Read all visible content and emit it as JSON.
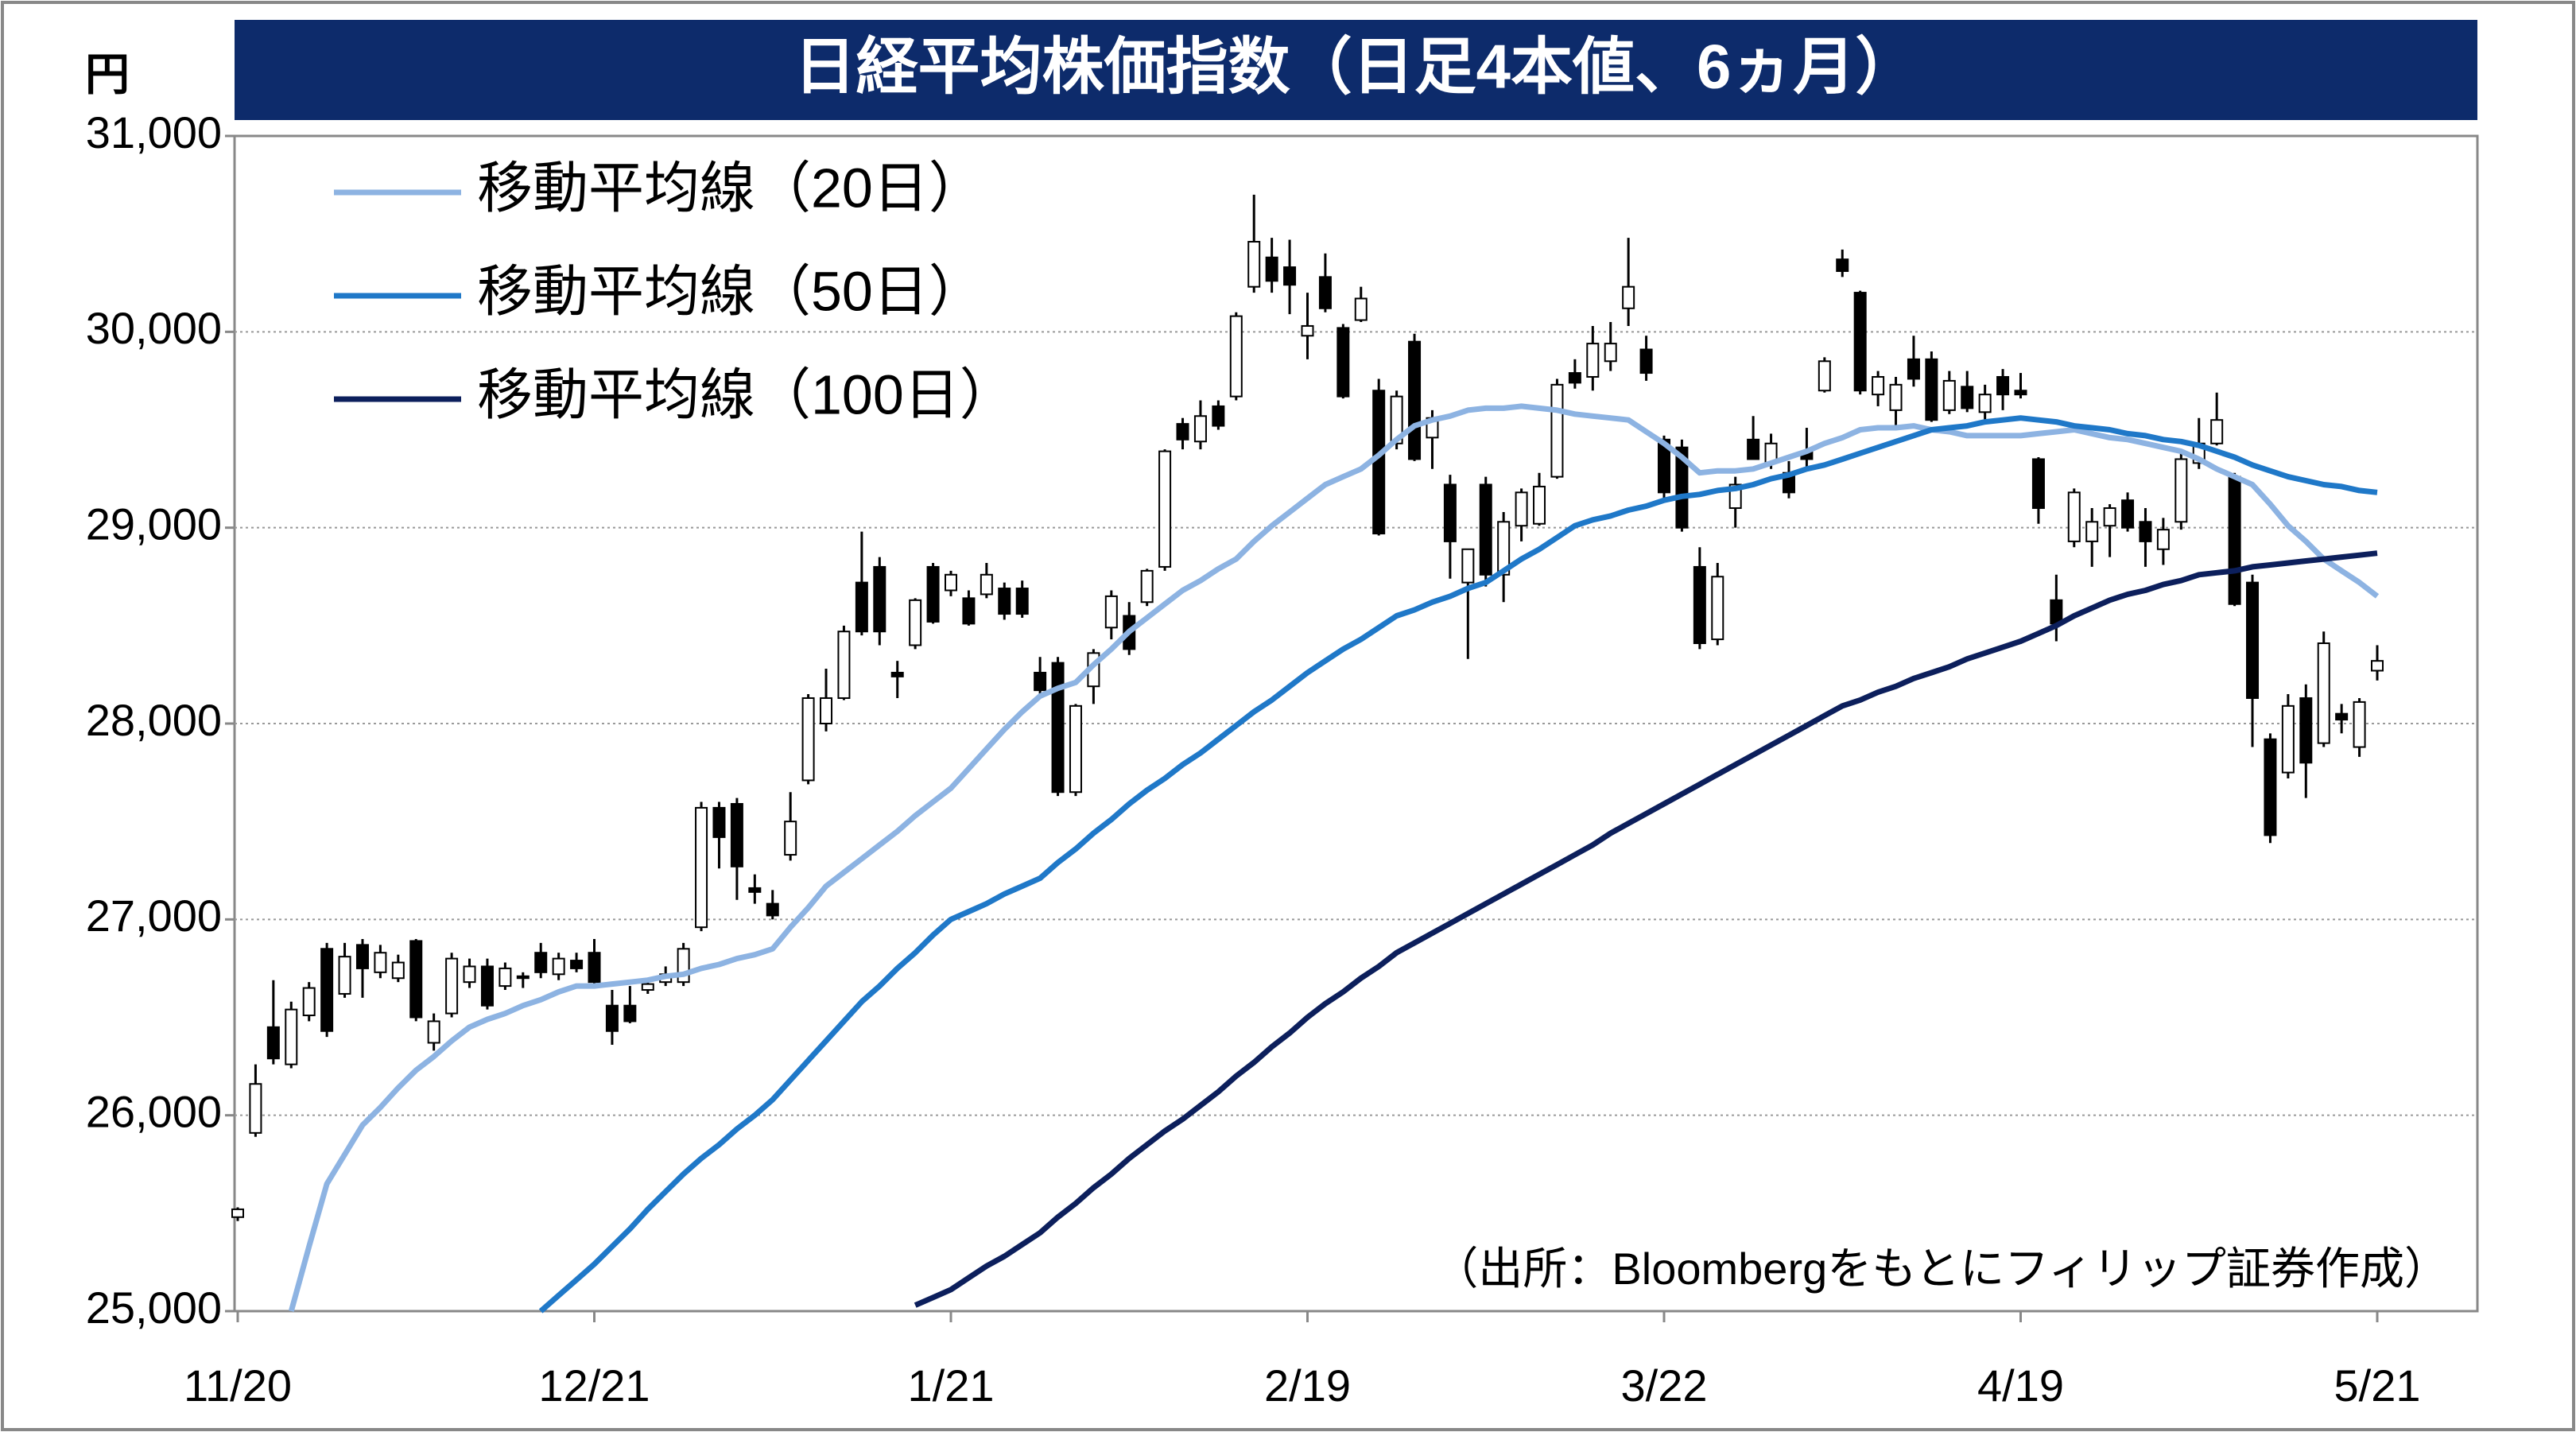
{
  "chart_data": {
    "type": "candlestick",
    "title": "日経平均株価指数（日足4本値、6ヵ月）",
    "y_unit": "円",
    "source": "（出所：Bloombergをもとにフィリップ証券作成）",
    "ylim": [
      25000,
      31000
    ],
    "yticks": [
      {
        "value": 25000,
        "label": "25,000"
      },
      {
        "value": 26000,
        "label": "26,000"
      },
      {
        "value": 27000,
        "label": "27,000"
      },
      {
        "value": 28000,
        "label": "28,000"
      },
      {
        "value": 29000,
        "label": "29,000"
      },
      {
        "value": 30000,
        "label": "30,000"
      },
      {
        "value": 31000,
        "label": "31,000"
      }
    ],
    "grid": true,
    "legend": "upper left",
    "up_color": "#ffffff",
    "down_color": "#000000",
    "categories": [
      "11/20",
      null,
      null,
      null,
      null,
      null,
      null,
      null,
      null,
      null,
      null,
      null,
      null,
      null,
      null,
      null,
      null,
      null,
      null,
      null,
      "12/21",
      null,
      null,
      null,
      null,
      null,
      null,
      null,
      null,
      null,
      null,
      null,
      null,
      null,
      null,
      null,
      null,
      null,
      null,
      null,
      "1/21",
      null,
      null,
      null,
      null,
      null,
      null,
      null,
      null,
      null,
      null,
      null,
      null,
      null,
      null,
      null,
      null,
      null,
      null,
      null,
      "2/19",
      null,
      null,
      null,
      null,
      null,
      null,
      null,
      null,
      null,
      null,
      null,
      null,
      null,
      null,
      null,
      null,
      null,
      null,
      null,
      "3/22",
      null,
      null,
      null,
      null,
      null,
      null,
      null,
      null,
      null,
      null,
      null,
      null,
      null,
      null,
      null,
      null,
      null,
      null,
      null,
      "4/19",
      null,
      null,
      null,
      null,
      null,
      null,
      null,
      null,
      null,
      null,
      null,
      null,
      null,
      null,
      null,
      null,
      null,
      null,
      null,
      "5/21"
    ],
    "candles": [
      [
        25480,
        25530,
        25460,
        25520
      ],
      [
        25910,
        26260,
        25890,
        26160
      ],
      [
        26450,
        26690,
        26260,
        26290
      ],
      [
        26260,
        26580,
        26240,
        26540
      ],
      [
        26510,
        26680,
        26480,
        26650
      ],
      [
        26850,
        26880,
        26400,
        26430
      ],
      [
        26620,
        26880,
        26600,
        26810
      ],
      [
        26870,
        26900,
        26600,
        26750
      ],
      [
        26730,
        26870,
        26700,
        26830
      ],
      [
        26700,
        26820,
        26680,
        26780
      ],
      [
        26890,
        26900,
        26480,
        26500
      ],
      [
        26370,
        26520,
        26330,
        26480
      ],
      [
        26520,
        26830,
        26500,
        26800
      ],
      [
        26680,
        26800,
        26650,
        26760
      ],
      [
        26760,
        26800,
        26540,
        26560
      ],
      [
        26660,
        26780,
        26640,
        26750
      ],
      [
        26710,
        26730,
        26650,
        26700
      ],
      [
        26830,
        26880,
        26700,
        26730
      ],
      [
        26720,
        26830,
        26690,
        26800
      ],
      [
        26790,
        26830,
        26730,
        26750
      ],
      [
        26830,
        26900,
        26650,
        26680
      ],
      [
        26560,
        26640,
        26360,
        26430
      ],
      [
        26560,
        26660,
        26470,
        26480
      ],
      [
        26640,
        26690,
        26620,
        26670
      ],
      [
        26680,
        26760,
        26660,
        26720
      ],
      [
        26680,
        26880,
        26660,
        26850
      ],
      [
        26960,
        27600,
        26940,
        27570
      ],
      [
        27570,
        27600,
        27260,
        27420
      ],
      [
        27590,
        27620,
        27100,
        27270
      ],
      [
        27160,
        27230,
        27080,
        27140
      ],
      [
        27080,
        27150,
        27000,
        27020
      ],
      [
        27330,
        27650,
        27300,
        27500
      ],
      [
        27710,
        28150,
        27690,
        28130
      ],
      [
        28000,
        28280,
        27960,
        28130
      ],
      [
        28130,
        28500,
        28120,
        28470
      ],
      [
        28720,
        28980,
        28450,
        28470
      ],
      [
        28800,
        28850,
        28400,
        28470
      ],
      [
        28260,
        28320,
        28130,
        28240
      ],
      [
        28400,
        28640,
        28380,
        28630
      ],
      [
        28800,
        28820,
        28510,
        28520
      ],
      [
        28680,
        28780,
        28650,
        28760
      ],
      [
        28640,
        28680,
        28500,
        28510
      ],
      [
        28660,
        28820,
        28640,
        28760
      ],
      [
        28690,
        28720,
        28530,
        28560
      ],
      [
        28690,
        28730,
        28540,
        28560
      ],
      [
        28260,
        28340,
        28150,
        28170
      ],
      [
        28310,
        28340,
        27630,
        27650
      ],
      [
        27650,
        28100,
        27630,
        28090
      ],
      [
        28190,
        28380,
        28100,
        28360
      ],
      [
        28490,
        28680,
        28430,
        28650
      ],
      [
        28550,
        28620,
        28350,
        28380
      ],
      [
        28620,
        28790,
        28600,
        28780
      ],
      [
        28800,
        29400,
        28780,
        29390
      ],
      [
        29530,
        29560,
        29400,
        29450
      ],
      [
        29440,
        29650,
        29400,
        29570
      ],
      [
        29620,
        29650,
        29500,
        29520
      ],
      [
        29670,
        30100,
        29650,
        30080
      ],
      [
        30230,
        30700,
        30200,
        30460
      ],
      [
        30380,
        30480,
        30200,
        30260
      ],
      [
        30330,
        30470,
        30090,
        30240
      ],
      [
        29980,
        30200,
        29860,
        30030
      ],
      [
        30280,
        30400,
        30100,
        30120
      ],
      [
        30020,
        30040,
        29660,
        29670
      ],
      [
        30060,
        30230,
        30050,
        30170
      ],
      [
        29700,
        29760,
        28960,
        28970
      ],
      [
        29430,
        29700,
        29400,
        29670
      ],
      [
        29950,
        29990,
        29340,
        29350
      ],
      [
        29460,
        29600,
        29300,
        29560
      ],
      [
        29220,
        29270,
        28740,
        28930
      ],
      [
        28720,
        28890,
        28330,
        28890
      ],
      [
        29220,
        29260,
        28700,
        28760
      ],
      [
        28760,
        29080,
        28620,
        29030
      ],
      [
        29010,
        29200,
        28930,
        29180
      ],
      [
        29020,
        29280,
        29010,
        29210
      ],
      [
        29260,
        29760,
        29250,
        29730
      ],
      [
        29790,
        29860,
        29710,
        29740
      ],
      [
        29770,
        30030,
        29700,
        29940
      ],
      [
        29850,
        30050,
        29800,
        29940
      ],
      [
        30120,
        30480,
        30030,
        30230
      ],
      [
        29910,
        29980,
        29750,
        29790
      ],
      [
        29450,
        29470,
        29150,
        29180
      ],
      [
        29410,
        29450,
        28980,
        29000
      ],
      [
        28800,
        28900,
        28380,
        28410
      ],
      [
        28430,
        28820,
        28400,
        28750
      ],
      [
        29100,
        29260,
        29000,
        29220
      ],
      [
        29450,
        29570,
        29350,
        29350
      ],
      [
        29330,
        29480,
        29300,
        29430
      ],
      [
        29280,
        29340,
        29150,
        29180
      ],
      [
        29390,
        29510,
        29300,
        29350
      ],
      [
        29700,
        29870,
        29690,
        29850
      ],
      [
        30370,
        30420,
        30280,
        30310
      ],
      [
        30200,
        30210,
        29680,
        29700
      ],
      [
        29680,
        29800,
        29620,
        29770
      ],
      [
        29600,
        29770,
        29500,
        29730
      ],
      [
        29860,
        29980,
        29720,
        29760
      ],
      [
        29860,
        29900,
        29540,
        29550
      ],
      [
        29600,
        29800,
        29580,
        29750
      ],
      [
        29720,
        29800,
        29590,
        29610
      ],
      [
        29590,
        29730,
        29550,
        29680
      ],
      [
        29770,
        29810,
        29600,
        29680
      ],
      [
        29700,
        29790,
        29660,
        29680
      ],
      [
        29350,
        29360,
        29020,
        29100
      ],
      [
        28630,
        28760,
        28420,
        28510
      ],
      [
        28930,
        29200,
        28900,
        29180
      ],
      [
        28930,
        29100,
        28800,
        29030
      ],
      [
        29010,
        29120,
        28850,
        29100
      ],
      [
        29140,
        29180,
        28980,
        29000
      ],
      [
        29030,
        29100,
        28800,
        28930
      ],
      [
        28890,
        29050,
        28810,
        28990
      ],
      [
        29030,
        29390,
        28990,
        29350
      ],
      [
        29330,
        29560,
        29300,
        29430
      ],
      [
        29430,
        29690,
        29420,
        29550
      ],
      [
        29260,
        29280,
        28600,
        28610
      ],
      [
        28720,
        28760,
        27880,
        28130
      ],
      [
        27920,
        27950,
        27390,
        27430
      ],
      [
        27750,
        28150,
        27720,
        28090
      ],
      [
        28130,
        28200,
        27620,
        27800
      ],
      [
        27900,
        28470,
        27880,
        28410
      ],
      [
        28050,
        28100,
        27950,
        28020
      ],
      [
        27880,
        28130,
        27830,
        28110
      ],
      [
        28270,
        28400,
        28220,
        28320
      ]
    ],
    "series": [
      {
        "name": "移動平均線（20日）",
        "color": "#8db3e2",
        "values": [
          null,
          null,
          null,
          25000,
          25330,
          25650,
          25800,
          25950,
          26040,
          26140,
          26230,
          26300,
          26380,
          26450,
          26490,
          26520,
          26560,
          26590,
          26630,
          26660,
          26660,
          26670,
          26680,
          26690,
          26710,
          26720,
          26750,
          26770,
          26800,
          26820,
          26850,
          26960,
          27060,
          27170,
          27240,
          27310,
          27380,
          27450,
          27530,
          27600,
          27670,
          27770,
          27870,
          27970,
          28060,
          28140,
          28180,
          28210,
          28300,
          28380,
          28470,
          28540,
          28610,
          28680,
          28730,
          28790,
          28840,
          28930,
          29010,
          29080,
          29150,
          29220,
          29260,
          29300,
          29370,
          29450,
          29520,
          29550,
          29570,
          29600,
          29610,
          29610,
          29620,
          29610,
          29600,
          29580,
          29570,
          29560,
          29550,
          29490,
          29430,
          29360,
          29280,
          29290,
          29290,
          29300,
          29330,
          29360,
          29390,
          29430,
          29460,
          29500,
          29510,
          29510,
          29520,
          29500,
          29490,
          29470,
          29470,
          29470,
          29470,
          29480,
          29490,
          29500,
          29480,
          29460,
          29450,
          29430,
          29410,
          29390,
          29350,
          29300,
          29260,
          29220,
          29120,
          29010,
          28930,
          28840,
          28780,
          28720,
          28650
        ]
      },
      {
        "name": "移動平均線（50日）",
        "color": "#1f78c8",
        "values": [
          null,
          null,
          null,
          null,
          null,
          null,
          null,
          null,
          null,
          null,
          null,
          null,
          null,
          null,
          null,
          null,
          null,
          25000,
          25080,
          25160,
          25240,
          25330,
          25420,
          25520,
          25610,
          25700,
          25780,
          25850,
          25930,
          26000,
          26080,
          26180,
          26280,
          26380,
          26480,
          26580,
          26660,
          26750,
          26830,
          26920,
          27000,
          27040,
          27080,
          27130,
          27170,
          27210,
          27290,
          27360,
          27440,
          27510,
          27590,
          27660,
          27720,
          27790,
          27850,
          27920,
          27990,
          28060,
          28120,
          28190,
          28260,
          28320,
          28380,
          28430,
          28490,
          28550,
          28580,
          28620,
          28650,
          28690,
          28720,
          28780,
          28840,
          28890,
          28950,
          29010,
          29040,
          29060,
          29090,
          29110,
          29140,
          29160,
          29170,
          29190,
          29200,
          29220,
          29250,
          29270,
          29300,
          29320,
          29350,
          29380,
          29410,
          29440,
          29470,
          29500,
          29510,
          29520,
          29540,
          29550,
          29560,
          29550,
          29540,
          29520,
          29510,
          29500,
          29480,
          29470,
          29450,
          29440,
          29420,
          29390,
          29360,
          29320,
          29290,
          29260,
          29240,
          29220,
          29210,
          29190,
          29180
        ]
      },
      {
        "name": "移動平均線（100日）",
        "color": "#0c1f5c",
        "values": [
          null,
          null,
          null,
          null,
          null,
          null,
          null,
          null,
          null,
          null,
          null,
          null,
          null,
          null,
          null,
          null,
          null,
          null,
          null,
          null,
          null,
          null,
          null,
          null,
          null,
          null,
          null,
          null,
          null,
          null,
          null,
          null,
          null,
          null,
          null,
          null,
          null,
          null,
          25030,
          25070,
          25110,
          25170,
          25230,
          25280,
          25340,
          25400,
          25480,
          25550,
          25630,
          25700,
          25780,
          25850,
          25920,
          25980,
          26050,
          26120,
          26200,
          26270,
          26350,
          26420,
          26500,
          26570,
          26630,
          26700,
          26760,
          26830,
          26880,
          26930,
          26980,
          27030,
          27080,
          27130,
          27180,
          27230,
          27280,
          27330,
          27380,
          27440,
          27490,
          27540,
          27590,
          27640,
          27690,
          27740,
          27790,
          27840,
          27890,
          27940,
          27990,
          28040,
          28090,
          28120,
          28160,
          28190,
          28230,
          28260,
          28290,
          28330,
          28360,
          28390,
          28420,
          28460,
          28500,
          28550,
          28590,
          28630,
          28660,
          28680,
          28710,
          28730,
          28760,
          28770,
          28780,
          28800,
          28810,
          28820,
          28830,
          28840,
          28850,
          28860,
          28870
        ]
      }
    ]
  }
}
